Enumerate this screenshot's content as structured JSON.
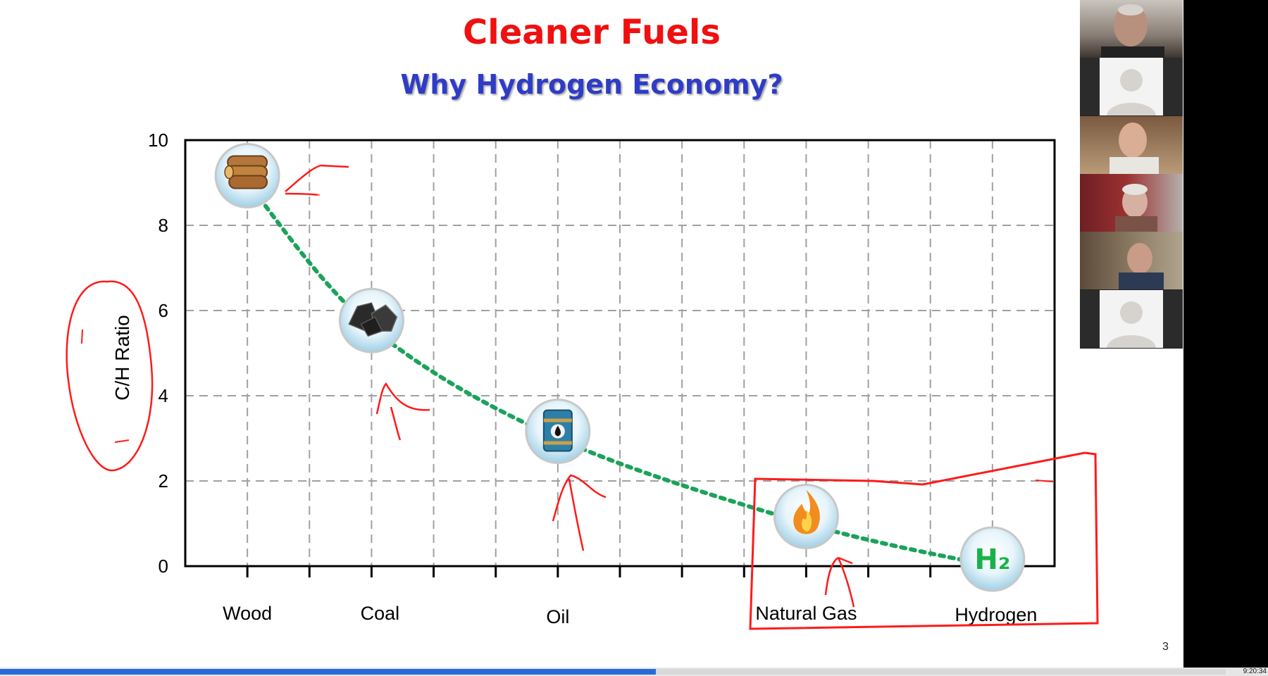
{
  "slide": {
    "title": "Cleaner Fuels",
    "subtitle": "Why Hydrogen Economy?",
    "number": "3"
  },
  "chart_data": {
    "type": "line",
    "x": [
      "Wood",
      "Coal",
      "Oil",
      "Natural Gas",
      "Hydrogen"
    ],
    "values": [
      9,
      5.6,
      3,
      1,
      0
    ],
    "ylabel": "C/H Ratio",
    "xlabel": "",
    "ylim": [
      0,
      10
    ],
    "yticks": [
      0,
      2,
      4,
      6,
      8,
      10
    ],
    "grid": true,
    "series_color": "#1aa35a",
    "line_style": "dotted",
    "icons": [
      "wood-logs-icon",
      "coal-icon",
      "oil-barrel-icon",
      "flame-icon",
      "h2-icon"
    ],
    "h2_text": "H₂",
    "annotation_color": "#ff1a1a"
  },
  "participants": [
    {
      "kind": "video",
      "name": "participant-1"
    },
    {
      "kind": "avatar",
      "name": "participant-2"
    },
    {
      "kind": "video",
      "name": "participant-3"
    },
    {
      "kind": "video",
      "name": "participant-4"
    },
    {
      "kind": "video",
      "name": "participant-5"
    },
    {
      "kind": "avatar",
      "name": "participant-6"
    }
  ],
  "playback": {
    "time": "9:20:34",
    "progress": 0.535
  }
}
